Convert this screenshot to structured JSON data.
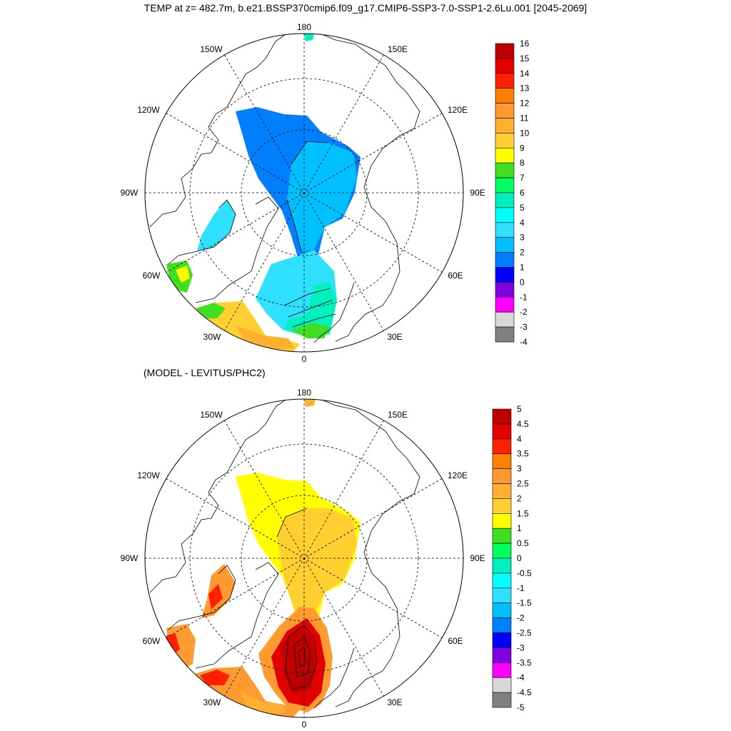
{
  "title": "TEMP at z= 482.7m, b.e21.BSSP370cmip6.f09_g17.CMIP6-SSP3-7.0-SSP1-2.6Lu.001 [2045-2069]",
  "subtitle": "(MODEL - LEVITUS/PHC2)",
  "longitude_labels": {
    "lon_180": "180",
    "lon_150w": "150W",
    "lon_150e": "150E",
    "lon_120w": "120W",
    "lon_120e": "120E",
    "lon_90w": "90W",
    "lon_90e": "90E",
    "lon_60w": "60W",
    "lon_60e": "60E",
    "lon_30w": "30W",
    "lon_30e": "30E",
    "lon_0": "0"
  },
  "map_top": {
    "colorbar_labels": [
      "16",
      "15",
      "14",
      "13",
      "12",
      "11",
      "10",
      "9",
      "8",
      "7",
      "6",
      "5",
      "4",
      "3",
      "2",
      "1",
      "0",
      "-1",
      "-2",
      "-3",
      "-4"
    ],
    "colorbar_colors": [
      "#c00000",
      "#e20000",
      "#ff2000",
      "#ff8000",
      "#ff9a30",
      "#ffb030",
      "#ffd030",
      "#ffff00",
      "#40e020",
      "#00ff60",
      "#00f0c0",
      "#00ffff",
      "#30e0ff",
      "#00c0ff",
      "#0080ff",
      "#0000ff",
      "#8000e0",
      "#ff00ff",
      "#d8d8d8",
      "#808080"
    ]
  },
  "map_bottom": {
    "colorbar_labels": [
      "5",
      "4.5",
      "4",
      "3.5",
      "3",
      "2.5",
      "2",
      "1.5",
      "1",
      "0.5",
      "0",
      "-0.5",
      "-1",
      "-1.5",
      "-2",
      "-2.5",
      "-3",
      "-3.5",
      "-4",
      "-4.5",
      "-5"
    ],
    "colorbar_colors": [
      "#c00000",
      "#e20000",
      "#ff2000",
      "#ff8000",
      "#ff9a30",
      "#ffb030",
      "#ffd030",
      "#ffff00",
      "#40e020",
      "#00ff60",
      "#00f0c0",
      "#00ffff",
      "#30e0ff",
      "#00c0ff",
      "#0080ff",
      "#0000ff",
      "#8000e0",
      "#ff00ff",
      "#d8d8d8",
      "#808080"
    ]
  }
}
